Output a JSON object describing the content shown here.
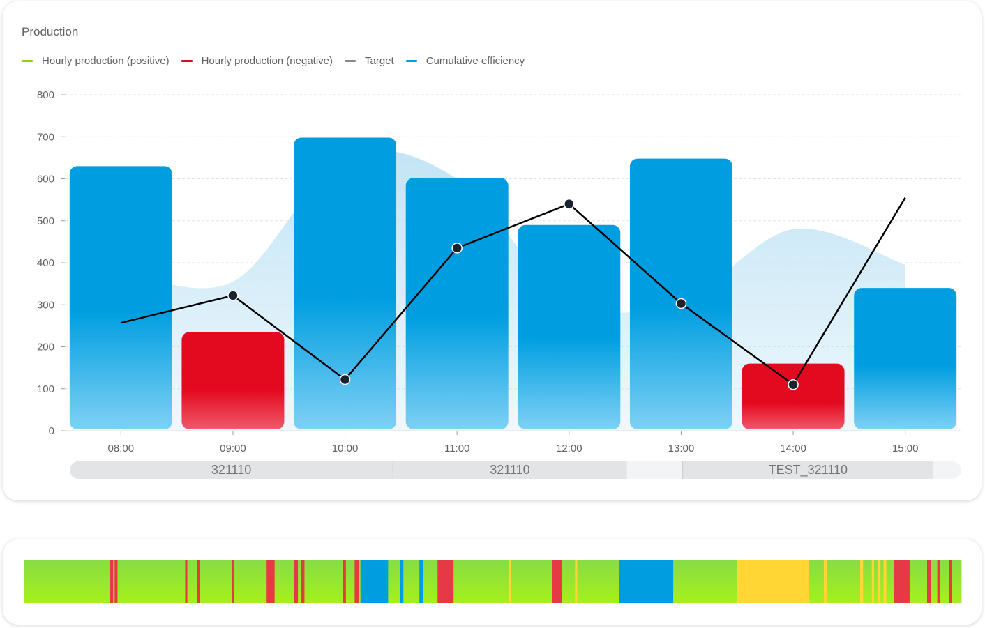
{
  "header": {
    "title": "Production"
  },
  "legend": [
    {
      "label": "Hourly production (positive)",
      "color": "#8fd400"
    },
    {
      "label": "Hourly production (negative)",
      "color": "#e30a1f"
    },
    {
      "label": "Target",
      "color": "#888888"
    },
    {
      "label": "Cumulative efficiency",
      "color": "#009ee0"
    }
  ],
  "colors": {
    "bar_blue": "#009ee0",
    "bar_red": "#e30a1f",
    "target_area": "#bfe3f5",
    "efficiency_line": "#000000",
    "status_green": "#98e030",
    "status_red": "#e63946",
    "status_blue": "#009ee0",
    "status_yellow": "#ffd633"
  },
  "chart_data": {
    "type": "bar",
    "title": "Production",
    "categories": [
      "08:00",
      "09:00",
      "10:00",
      "11:00",
      "12:00",
      "13:00",
      "14:00",
      "15:00"
    ],
    "yticks": [
      0,
      100,
      200,
      300,
      400,
      500,
      600,
      700,
      800
    ],
    "ylim": [
      0,
      800
    ],
    "grid": true,
    "legend_position": "top-left",
    "series": [
      {
        "name": "Hourly production (positive)",
        "type": "bar",
        "values": [
          630,
          235,
          698,
          602,
          490,
          648,
          160,
          340
        ],
        "bar_colors": [
          "blue",
          "red",
          "blue",
          "blue",
          "blue",
          "blue",
          "red",
          "blue"
        ]
      },
      {
        "name": "Target",
        "type": "area",
        "values": [
          380,
          355,
          650,
          600,
          310,
          310,
          480,
          395
        ]
      },
      {
        "name": "Cumulative efficiency",
        "type": "line",
        "values": [
          257,
          322,
          122,
          435,
          540,
          303,
          110,
          555
        ],
        "markers": [
          false,
          true,
          true,
          true,
          true,
          true,
          true,
          false
        ]
      }
    ],
    "shifts": [
      {
        "label": "321110",
        "start": 0,
        "end": 2.9
      },
      {
        "label": "321110",
        "start": 2.9,
        "end": 5
      },
      {
        "label": "",
        "start": 5,
        "end": 5.5
      },
      {
        "label": "TEST_321110",
        "start": 5.5,
        "end": 7.75
      },
      {
        "label": "",
        "start": 7.75,
        "end": 8
      }
    ]
  },
  "status_bar": {
    "segments": [
      [
        "green",
        118
      ],
      [
        "red",
        4
      ],
      [
        "green",
        2
      ],
      [
        "red",
        4
      ],
      [
        "green",
        93
      ],
      [
        "red",
        3
      ],
      [
        "green",
        13
      ],
      [
        "red",
        4
      ],
      [
        "green",
        44
      ],
      [
        "red",
        3
      ],
      [
        "green",
        45
      ],
      [
        "red",
        11
      ],
      [
        "green",
        27
      ],
      [
        "red",
        5
      ],
      [
        "green",
        4
      ],
      [
        "red",
        5
      ],
      [
        "green",
        53
      ],
      [
        "red",
        4
      ],
      [
        "green",
        12
      ],
      [
        "red",
        6
      ],
      [
        "green",
        2
      ],
      [
        "blue",
        38
      ],
      [
        "green",
        16
      ],
      [
        "blue",
        5
      ],
      [
        "green",
        22
      ],
      [
        "blue",
        5
      ],
      [
        "green",
        20
      ],
      [
        "red",
        22
      ],
      [
        "green",
        76
      ],
      [
        "yellow",
        3
      ],
      [
        "green",
        57
      ],
      [
        "red",
        13
      ],
      [
        "green",
        18
      ],
      [
        "yellow",
        3
      ],
      [
        "green",
        58
      ],
      [
        "blue",
        74
      ],
      [
        "green",
        88
      ],
      [
        "yellow",
        99
      ],
      [
        "green",
        20
      ],
      [
        "yellow",
        4
      ],
      [
        "green",
        46
      ],
      [
        "yellow",
        4
      ],
      [
        "green",
        12
      ],
      [
        "yellow",
        3
      ],
      [
        "green",
        5
      ],
      [
        "yellow",
        4
      ],
      [
        "green",
        4
      ],
      [
        "yellow",
        4
      ],
      [
        "green",
        10
      ],
      [
        "red",
        22
      ],
      [
        "green",
        24
      ],
      [
        "red",
        5
      ],
      [
        "green",
        9
      ],
      [
        "red",
        4
      ],
      [
        "green",
        12
      ],
      [
        "red",
        4
      ],
      [
        "green",
        13
      ]
    ]
  }
}
